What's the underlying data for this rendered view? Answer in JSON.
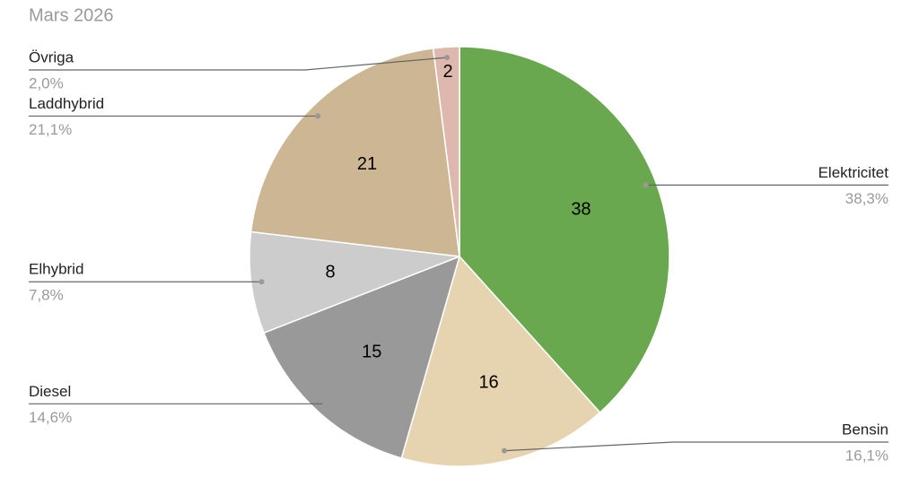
{
  "chart_data": {
    "type": "pie",
    "title": "Mars 2026",
    "categories": [
      "Elektricitet",
      "Bensin",
      "Diesel",
      "Elhybrid",
      "Laddhybrid",
      "Övriga"
    ],
    "values": [
      38.3,
      16.1,
      14.6,
      7.8,
      21.1,
      2.0
    ],
    "value_labels": [
      "38,3%",
      "16,1%",
      "14,6%",
      "7,8%",
      "21,1%",
      "2,0%"
    ],
    "slice_labels": [
      "38",
      "16",
      "15",
      "8",
      "21",
      "2"
    ],
    "colors": [
      "#6aa84f",
      "#e6d3b0",
      "#999999",
      "#cccccc",
      "#cdb694",
      "#deb8ae"
    ]
  }
}
